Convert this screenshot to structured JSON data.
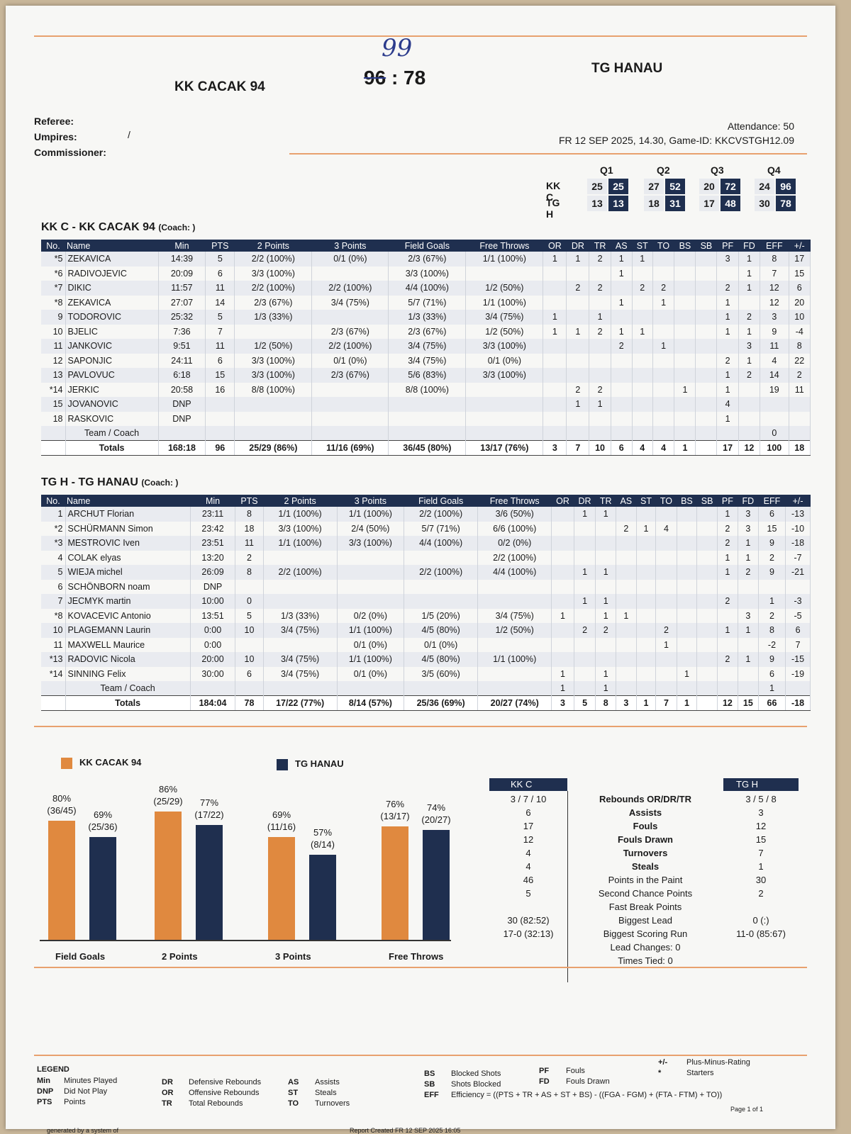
{
  "header": {
    "home_team": "KK CACAK 94",
    "away_team": "TG HANAU",
    "handwritten_score": "99",
    "home_score": "96",
    "separator": ":",
    "away_score": "78",
    "referee_label": "Referee:",
    "umpires_label": "Umpires:",
    "commissioner_label": "Commissioner:",
    "umpires_value": "/",
    "attendance": "Attendance: 50",
    "date_line": "FR 12 SEP 2025, 14.30, Game-ID: KKCVSTGH12.09"
  },
  "quarters": {
    "labels": [
      "Q1",
      "Q2",
      "Q3",
      "Q4"
    ],
    "home_abbr": "KK C",
    "away_abbr": "TG H",
    "home": [
      {
        "pts": "25",
        "cum": "25"
      },
      {
        "pts": "27",
        "cum": "52"
      },
      {
        "pts": "20",
        "cum": "72"
      },
      {
        "pts": "24",
        "cum": "96"
      }
    ],
    "away": [
      {
        "pts": "13",
        "cum": "13"
      },
      {
        "pts": "18",
        "cum": "31"
      },
      {
        "pts": "17",
        "cum": "48"
      },
      {
        "pts": "30",
        "cum": "78"
      }
    ]
  },
  "columns": [
    "No.",
    "Name",
    "Min",
    "PTS",
    "2 Points",
    "3 Points",
    "Field Goals",
    "Free Throws",
    "OR",
    "DR",
    "TR",
    "AS",
    "ST",
    "TO",
    "BS",
    "SB",
    "PF",
    "FD",
    "EFF",
    "+/-"
  ],
  "home_box": {
    "title": "KK C - KK CACAK 94",
    "coach": "(Coach: )",
    "rows": [
      [
        "*5",
        "ZEKAVICA",
        "14:39",
        "5",
        "2/2 (100%)",
        "0/1 (0%)",
        "2/3 (67%)",
        "1/1 (100%)",
        "1",
        "1",
        "2",
        "1",
        "1",
        "",
        "",
        "",
        "3",
        "1",
        "8",
        "17"
      ],
      [
        "*6",
        "RADIVOJEVIC",
        "20:09",
        "6",
        "3/3 (100%)",
        "",
        "3/3 (100%)",
        "",
        "",
        "",
        "",
        "1",
        "",
        "",
        "",
        "",
        "",
        "1",
        "7",
        "15"
      ],
      [
        "*7",
        "DIKIC",
        "11:57",
        "11",
        "2/2 (100%)",
        "2/2 (100%)",
        "4/4 (100%)",
        "1/2 (50%)",
        "",
        "2",
        "2",
        "",
        "2",
        "2",
        "",
        "",
        "2",
        "1",
        "12",
        "6"
      ],
      [
        "*8",
        "ZEKAVICA",
        "27:07",
        "14",
        "2/3 (67%)",
        "3/4 (75%)",
        "5/7 (71%)",
        "1/1 (100%)",
        "",
        "",
        "",
        "1",
        "",
        "1",
        "",
        "",
        "1",
        "",
        "12",
        "20"
      ],
      [
        "9",
        "TODOROVIC",
        "25:32",
        "5",
        "1/3 (33%)",
        "",
        "1/3 (33%)",
        "3/4 (75%)",
        "1",
        "",
        "1",
        "",
        "",
        "",
        "",
        "",
        "1",
        "2",
        "3",
        "10"
      ],
      [
        "10",
        "BJELIC",
        "7:36",
        "7",
        "",
        "2/3 (67%)",
        "2/3 (67%)",
        "1/2 (50%)",
        "1",
        "1",
        "2",
        "1",
        "1",
        "",
        "",
        "",
        "1",
        "1",
        "9",
        "-4"
      ],
      [
        "11",
        "JANKOVIC",
        "9:51",
        "11",
        "1/2 (50%)",
        "2/2 (100%)",
        "3/4 (75%)",
        "3/3 (100%)",
        "",
        "",
        "",
        "2",
        "",
        "1",
        "",
        "",
        "",
        "3",
        "11",
        "8"
      ],
      [
        "12",
        "SAPONJIC",
        "24:11",
        "6",
        "3/3 (100%)",
        "0/1 (0%)",
        "3/4 (75%)",
        "0/1 (0%)",
        "",
        "",
        "",
        "",
        "",
        "",
        "",
        "",
        "2",
        "1",
        "4",
        "22"
      ],
      [
        "13",
        "PAVLOVUC",
        "6:18",
        "15",
        "3/3 (100%)",
        "2/3 (67%)",
        "5/6 (83%)",
        "3/3 (100%)",
        "",
        "",
        "",
        "",
        "",
        "",
        "",
        "",
        "1",
        "2",
        "14",
        "2"
      ],
      [
        "*14",
        "JERKIC",
        "20:58",
        "16",
        "8/8 (100%)",
        "",
        "8/8 (100%)",
        "",
        "",
        "2",
        "2",
        "",
        "",
        "",
        "1",
        "",
        "1",
        "",
        "19",
        "11"
      ],
      [
        "15",
        "JOVANOVIC",
        "DNP",
        "",
        "",
        "",
        "",
        "",
        "",
        "1",
        "1",
        "",
        "",
        "",
        "",
        "",
        "4",
        "",
        "",
        ""
      ],
      [
        "18",
        "RASKOVIC",
        "DNP",
        "",
        "",
        "",
        "",
        "",
        "",
        "",
        "",
        "",
        "",
        "",
        "",
        "",
        "1",
        "",
        "",
        ""
      ],
      [
        "",
        "Team / Coach",
        "",
        "",
        "",
        "",
        "",
        "",
        "",
        "",
        "",
        "",
        "",
        "",
        "",
        "",
        "",
        "",
        "0",
        ""
      ]
    ],
    "totals": [
      "",
      "Totals",
      "168:18",
      "96",
      "25/29 (86%)",
      "11/16 (69%)",
      "36/45 (80%)",
      "13/17 (76%)",
      "3",
      "7",
      "10",
      "6",
      "4",
      "4",
      "1",
      "",
      "17",
      "12",
      "100",
      "18"
    ]
  },
  "away_box": {
    "title": "TG H - TG HANAU",
    "coach": "(Coach: )",
    "rows": [
      [
        "1",
        "ARCHUT Florian",
        "23:11",
        "8",
        "1/1 (100%)",
        "1/1 (100%)",
        "2/2 (100%)",
        "3/6 (50%)",
        "",
        "1",
        "1",
        "",
        "",
        "",
        "",
        "",
        "1",
        "3",
        "6",
        "-13"
      ],
      [
        "*2",
        "SCHÜRMANN Simon",
        "23:42",
        "18",
        "3/3 (100%)",
        "2/4 (50%)",
        "5/7 (71%)",
        "6/6 (100%)",
        "",
        "",
        "",
        "2",
        "1",
        "4",
        "",
        "",
        "2",
        "3",
        "15",
        "-10"
      ],
      [
        "*3",
        "MESTROVIC Iven",
        "23:51",
        "11",
        "1/1 (100%)",
        "3/3 (100%)",
        "4/4 (100%)",
        "0/2 (0%)",
        "",
        "",
        "",
        "",
        "",
        "",
        "",
        "",
        "2",
        "1",
        "9",
        "-18"
      ],
      [
        "4",
        "COLAK elyas",
        "13:20",
        "2",
        "",
        "",
        "",
        "2/2 (100%)",
        "",
        "",
        "",
        "",
        "",
        "",
        "",
        "",
        "1",
        "1",
        "2",
        "-7"
      ],
      [
        "5",
        "WIEJA michel",
        "26:09",
        "8",
        "2/2 (100%)",
        "",
        "2/2 (100%)",
        "4/4 (100%)",
        "",
        "1",
        "1",
        "",
        "",
        "",
        "",
        "",
        "1",
        "2",
        "9",
        "-21"
      ],
      [
        "6",
        "SCHÖNBORN noam",
        "DNP",
        "",
        "",
        "",
        "",
        "",
        "",
        "",
        "",
        "",
        "",
        "",
        "",
        "",
        "",
        "",
        "",
        ""
      ],
      [
        "7",
        "JECMYK martin",
        "10:00",
        "0",
        "",
        "",
        "",
        "",
        "",
        "1",
        "1",
        "",
        "",
        "",
        "",
        "",
        "2",
        "",
        "1",
        "-3"
      ],
      [
        "*8",
        "KOVACEVIC Antonio",
        "13:51",
        "5",
        "1/3 (33%)",
        "0/2 (0%)",
        "1/5 (20%)",
        "3/4 (75%)",
        "1",
        "",
        "1",
        "1",
        "",
        "",
        "",
        "",
        "",
        "3",
        "2",
        "-5"
      ],
      [
        "10",
        "PLAGEMANN Laurin",
        "0:00",
        "10",
        "3/4 (75%)",
        "1/1 (100%)",
        "4/5 (80%)",
        "1/2 (50%)",
        "",
        "2",
        "2",
        "",
        "",
        "2",
        "",
        "",
        "1",
        "1",
        "8",
        "6"
      ],
      [
        "11",
        "MAXWELL Maurice",
        "0:00",
        "",
        "",
        "0/1 (0%)",
        "0/1 (0%)",
        "",
        "",
        "",
        "",
        "",
        "",
        "1",
        "",
        "",
        "",
        "",
        "-2",
        "7"
      ],
      [
        "*13",
        "RADOVIC Nicola",
        "20:00",
        "10",
        "3/4 (75%)",
        "1/1 (100%)",
        "4/5 (80%)",
        "1/1 (100%)",
        "",
        "",
        "",
        "",
        "",
        "",
        "",
        "",
        "2",
        "1",
        "9",
        "-15"
      ],
      [
        "*14",
        "SINNING Felix",
        "30:00",
        "6",
        "3/4 (75%)",
        "0/1 (0%)",
        "3/5 (60%)",
        "",
        "1",
        "",
        "1",
        "",
        "",
        "",
        "1",
        "",
        "",
        "",
        "6",
        "-19"
      ],
      [
        "",
        "Team / Coach",
        "",
        "",
        "",
        "",
        "",
        "",
        "1",
        "",
        "1",
        "",
        "",
        "",
        "",
        "",
        "",
        "",
        "1",
        ""
      ]
    ],
    "totals": [
      "",
      "Totals",
      "184:04",
      "78",
      "17/22 (77%)",
      "8/14 (57%)",
      "25/36 (69%)",
      "20/27 (74%)",
      "3",
      "5",
      "8",
      "3",
      "1",
      "7",
      "1",
      "",
      "12",
      "15",
      "66",
      "-18"
    ]
  },
  "chart_data": {
    "type": "bar",
    "categories": [
      "Field Goals",
      "2 Points",
      "3 Points",
      "Free Throws"
    ],
    "ylim": [
      0,
      100
    ],
    "series": [
      {
        "name": "KK CACAK 94",
        "color": "#e0893f",
        "values": [
          80,
          86,
          69,
          76
        ],
        "labels": [
          "80%\n(36/45)",
          "86%\n(25/29)",
          "69%\n(11/16)",
          "76%\n(13/17)"
        ]
      },
      {
        "name": "TG HANAU",
        "color": "#1f2f4f",
        "values": [
          69,
          77,
          57,
          74
        ],
        "labels": [
          "69%\n(25/36)",
          "77%\n(17/22)",
          "57%\n(8/14)",
          "74%\n(20/27)"
        ]
      }
    ]
  },
  "comparison": {
    "home_abbr": "KK C",
    "away_abbr": "TG H",
    "rows": [
      {
        "home": "3 / 7 / 10",
        "label": "Rebounds OR/DR/TR",
        "away": "3 / 5 / 8"
      },
      {
        "home": "6",
        "label": "Assists",
        "away": "3"
      },
      {
        "home": "17",
        "label": "Fouls",
        "away": "12"
      },
      {
        "home": "12",
        "label": "Fouls Drawn",
        "away": "15"
      },
      {
        "home": "4",
        "label": "Turnovers",
        "away": "7"
      },
      {
        "home": "4",
        "label": "Steals",
        "away": "1"
      },
      {
        "home": "46",
        "label": "Points in the Paint",
        "away": "30"
      },
      {
        "home": "5",
        "label": "Second Chance Points",
        "away": "2"
      },
      {
        "home": "",
        "label": "Fast Break Points",
        "away": ""
      },
      {
        "home": "30 (82:52)",
        "label": "Biggest Lead",
        "away": "0 (:)"
      },
      {
        "home": "17-0 (32:13)",
        "label": "Biggest Scoring Run",
        "away": "11-0 (85:67)"
      },
      {
        "home": "",
        "label": "Lead Changes:  0",
        "away": ""
      },
      {
        "home": "",
        "label": "Times Tied:  0",
        "away": ""
      }
    ]
  },
  "legend": {
    "title": "LEGEND",
    "groups": [
      [
        [
          "Min",
          "Minutes Played"
        ],
        [
          "DNP",
          "Did Not Play"
        ],
        [
          "PTS",
          "Points"
        ]
      ],
      [
        [
          "DR",
          "Defensive Rebounds"
        ],
        [
          "OR",
          "Offensive Rebounds"
        ],
        [
          "TR",
          "Total Rebounds"
        ]
      ],
      [
        [
          "AS",
          "Assists"
        ],
        [
          "ST",
          "Steals"
        ],
        [
          "TO",
          "Turnovers"
        ]
      ],
      [
        [
          "BS",
          "Blocked Shots"
        ],
        [
          "SB",
          "Shots Blocked"
        ],
        [
          "EFF",
          "Efficiency = ((PTS + TR + AS + ST + BS) - ((FGA - FGM) + (FTA - FTM) + TO))"
        ]
      ],
      [
        [
          "PF",
          "Fouls"
        ],
        [
          "FD",
          "Fouls Drawn"
        ]
      ],
      [
        [
          "+/-",
          "Plus-Minus-Rating"
        ],
        [
          "*",
          "Starters"
        ]
      ]
    ]
  },
  "footer": {
    "generated": "generated by a system of",
    "report_created": "Report Created  FR 12 SEP 2025 16:05",
    "page": "Page 1 of 1"
  }
}
